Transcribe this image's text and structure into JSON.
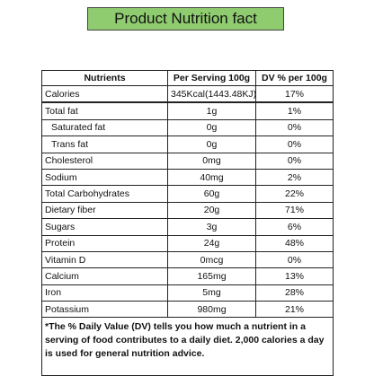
{
  "header": {
    "title": "Product Nutrition fact"
  },
  "table": {
    "columns": [
      "Nutrients",
      "Per Serving 100g",
      "DV % per 100g"
    ],
    "rows": [
      [
        "Calories",
        "345Kcal(1443.48KJ)",
        "17%"
      ],
      [
        "Total fat",
        "1g",
        "1%"
      ],
      [
        "Saturated fat",
        "0g",
        "0%"
      ],
      [
        "Trans fat",
        "0g",
        "0%"
      ],
      [
        "Cholesterol",
        "0mg",
        "0%"
      ],
      [
        "Sodium",
        "40mg",
        "2%"
      ],
      [
        "Total Carbohydrates",
        "60g",
        "22%"
      ],
      [
        "Dietary fiber",
        "20g",
        "71%"
      ],
      [
        "Sugars",
        "3g",
        "6%"
      ],
      [
        "Protein",
        "24g",
        "48%"
      ],
      [
        "Vitamin D",
        "0mcg",
        "0%"
      ],
      [
        "Calcium",
        "165mg",
        "13%"
      ],
      [
        "Iron",
        "5mg",
        "28%"
      ],
      [
        "Potassium",
        "980mg",
        "21%"
      ]
    ],
    "footnote": "*The % Daily Value (DV) tells you how much a nutrient in a serving of food contributes to a daily diet. 2,000 calories a day is used for general nutrition advice."
  }
}
